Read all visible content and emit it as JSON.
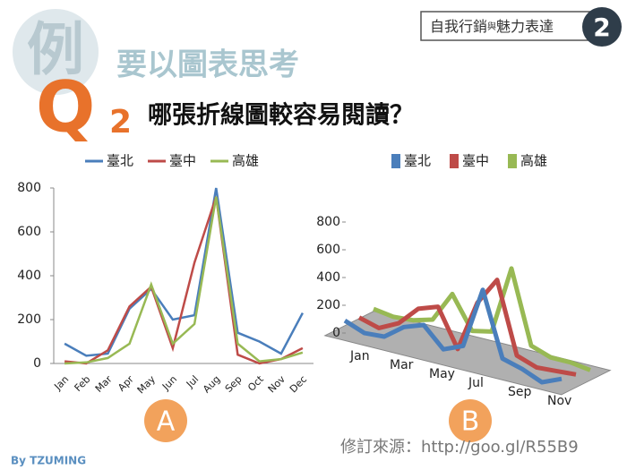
{
  "header": {
    "title_part1": "自我行銷",
    "title_small": "與",
    "title_part2": "魅力表達",
    "badge": "2"
  },
  "logo": "例",
  "subtitle": "要以圖表思考",
  "question_letter": "Q",
  "question_number": "2",
  "question": "哪張折線圖較容易閱讀？",
  "label_a": "A",
  "label_b": "B",
  "source": "修訂來源：http://goo.gl/R55B9",
  "watermark": "By TZUMING",
  "chart_data": [
    {
      "type": "line",
      "categories": [
        "Jan",
        "Feb",
        "Mar",
        "Apr",
        "May",
        "Jun",
        "Jul",
        "Aug",
        "Sep",
        "Oct",
        "Nov",
        "Dec"
      ],
      "series": [
        {
          "name": "臺北",
          "color": "#4a7ebb",
          "values": [
            90,
            35,
            45,
            250,
            340,
            200,
            220,
            800,
            140,
            100,
            45,
            230
          ]
        },
        {
          "name": "臺中",
          "color": "#be4b48",
          "values": [
            10,
            0,
            60,
            260,
            350,
            70,
            460,
            760,
            40,
            0,
            20,
            70
          ]
        },
        {
          "name": "高雄",
          "color": "#98b954",
          "values": [
            0,
            5,
            25,
            90,
            360,
            90,
            180,
            760,
            90,
            10,
            20,
            50
          ]
        }
      ],
      "ylim": [
        0,
        800
      ],
      "yticks": [
        0,
        200,
        400,
        600,
        800
      ]
    },
    {
      "type": "line3d",
      "categories": [
        "Jan",
        null,
        "Mar",
        null,
        "May",
        null,
        "Jul",
        null,
        "Sep",
        null,
        "Nov",
        null
      ],
      "series": [
        {
          "name": "臺北",
          "color": "#4a7ebb",
          "values": [
            90,
            35,
            45,
            150,
            200,
            60,
            120,
            560,
            100,
            60,
            0,
            60
          ]
        },
        {
          "name": "臺中",
          "color": "#be4b48",
          "values": [
            60,
            20,
            90,
            230,
            280,
            10,
            380,
            580,
            70,
            20,
            30,
            40
          ]
        },
        {
          "name": "高雄",
          "color": "#98b954",
          "values": [
            70,
            50,
            60,
            100,
            320,
            90,
            120,
            610,
            90,
            40,
            40,
            20
          ]
        }
      ],
      "ylim": [
        0,
        800
      ],
      "yticks": [
        0,
        200,
        400,
        600,
        800
      ]
    }
  ]
}
